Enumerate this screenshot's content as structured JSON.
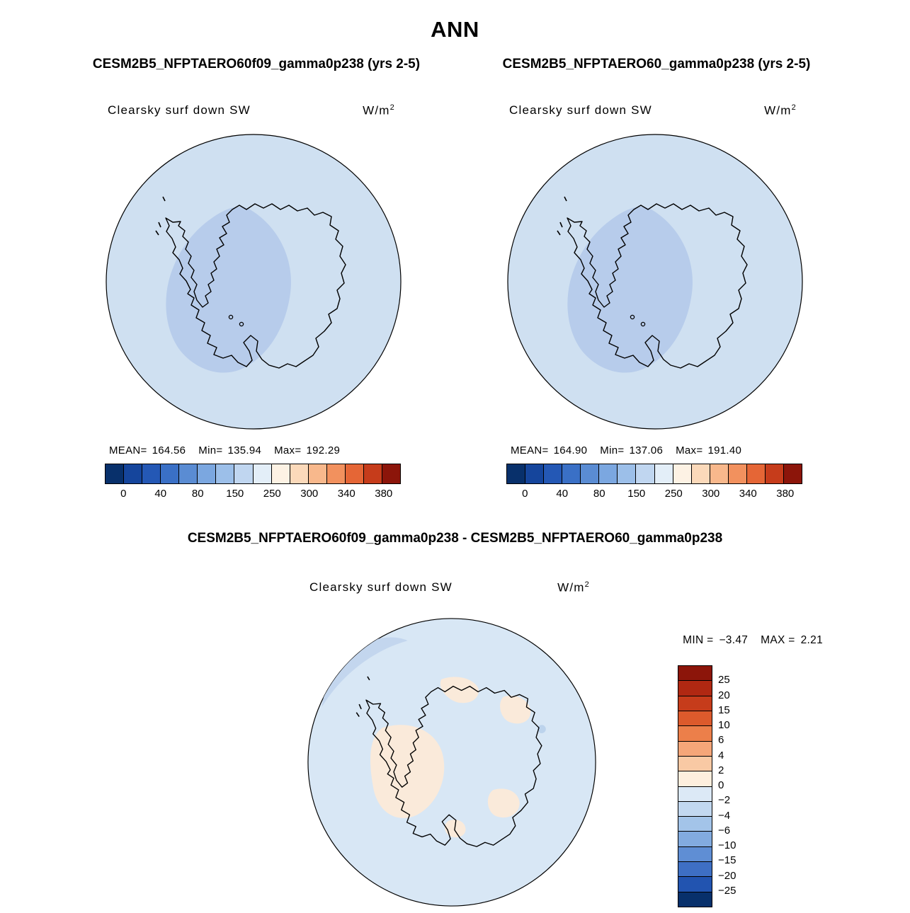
{
  "header": {
    "title": "ANN"
  },
  "run_titles": {
    "left": "CESM2B5_NFPTAERO60f09_gamma0p238 (yrs 2-5)",
    "right": "CESM2B5_NFPTAERO60_gamma0p238 (yrs 2-5)"
  },
  "panel_left": {
    "field_title": "Clearsky surf down SW",
    "units": "W/m",
    "units_sup": "2",
    "mean_label": "MEAN=",
    "mean": "164.56",
    "min_label": "Min=",
    "min": "135.94",
    "max_label": "Max=",
    "max": "192.29"
  },
  "panel_right": {
    "field_title": "Clearsky surf down SW",
    "units": "W/m",
    "units_sup": "2",
    "mean_label": "MEAN=",
    "mean": "164.90",
    "min_label": "Min=",
    "min": "137.06",
    "max_label": "Max=",
    "max": "191.40"
  },
  "diff": {
    "title": "CESM2B5_NFPTAERO60f09_gamma0p238 - CESM2B5_NFPTAERO60_gamma0p238",
    "field_title": "Clearsky surf down SW",
    "units": "W/m",
    "units_sup": "2",
    "min_label": "MIN =",
    "min": "−3.47",
    "max_label": "MAX =",
    "max": "2.21"
  },
  "main_colorbar": {
    "ticks": [
      "0",
      "40",
      "80",
      "150",
      "250",
      "300",
      "340",
      "380"
    ]
  },
  "diff_colorbar": {
    "labels": [
      "25",
      "20",
      "15",
      "10",
      "6",
      "4",
      "2",
      "0",
      "−2",
      "−4",
      "−6",
      "−10",
      "−15",
      "−20",
      "−25"
    ]
  },
  "colors": {
    "ocean": "#cfe0f1",
    "ocean_diff": "#d8e7f5",
    "low_anomaly": "#b7cceb",
    "diff_positive_patch": "#faeada",
    "diff_band": "#c3d6ee",
    "diff_speck": "#bcd3ec",
    "coast": "#000000",
    "scale_main": [
      "#08306b",
      "#15459c",
      "#2458b5",
      "#3a70c6",
      "#5a8cd3",
      "#7ba7e0",
      "#9cbfe9",
      "#c0d6f0",
      "#e3eef8",
      "#fdf2e4",
      "#fbd9ba",
      "#f8b88c",
      "#f2915e",
      "#e56636",
      "#c63c1b",
      "#8c150a"
    ],
    "scale_diff": [
      "#8c150a",
      "#b02812",
      "#c63c1b",
      "#dc5a2c",
      "#ec7f4a",
      "#f5a679",
      "#f9c9a4",
      "#fdeedd",
      "#dce9f6",
      "#c2d8f0",
      "#a3c4e9",
      "#82abdf",
      "#5f8ed4",
      "#3e6fc4",
      "#2254b0",
      "#08306b"
    ]
  },
  "chart_data": [
    {
      "type": "heatmap",
      "subtype": "south-polar-stereographic-map",
      "run": "CESM2B5_NFPTAERO60f09_gamma0p238 (yrs 2-5)",
      "title": "Clearsky surf down SW",
      "units": "W/m^2",
      "season": "ANN",
      "stats": {
        "mean": 164.56,
        "min": 135.94,
        "max": 192.29
      },
      "colorbar_ticks": [
        0,
        40,
        80,
        150,
        250,
        300,
        340,
        380
      ],
      "legend_position": "bottom"
    },
    {
      "type": "heatmap",
      "subtype": "south-polar-stereographic-map",
      "run": "CESM2B5_NFPTAERO60_gamma0p238 (yrs 2-5)",
      "title": "Clearsky surf down SW",
      "units": "W/m^2",
      "season": "ANN",
      "stats": {
        "mean": 164.9,
        "min": 137.06,
        "max": 191.4
      },
      "colorbar_ticks": [
        0,
        40,
        80,
        150,
        250,
        300,
        340,
        380
      ],
      "legend_position": "bottom"
    },
    {
      "type": "heatmap",
      "subtype": "south-polar-stereographic-difference-map",
      "run": "CESM2B5_NFPTAERO60f09_gamma0p238 - CESM2B5_NFPTAERO60_gamma0p238",
      "title": "Clearsky surf down SW",
      "units": "W/m^2",
      "season": "ANN",
      "stats": {
        "min": -3.47,
        "max": 2.21
      },
      "colorbar_levels": [
        25,
        20,
        15,
        10,
        6,
        4,
        2,
        0,
        -2,
        -4,
        -6,
        -10,
        -15,
        -20,
        -25
      ],
      "legend_position": "right"
    }
  ]
}
